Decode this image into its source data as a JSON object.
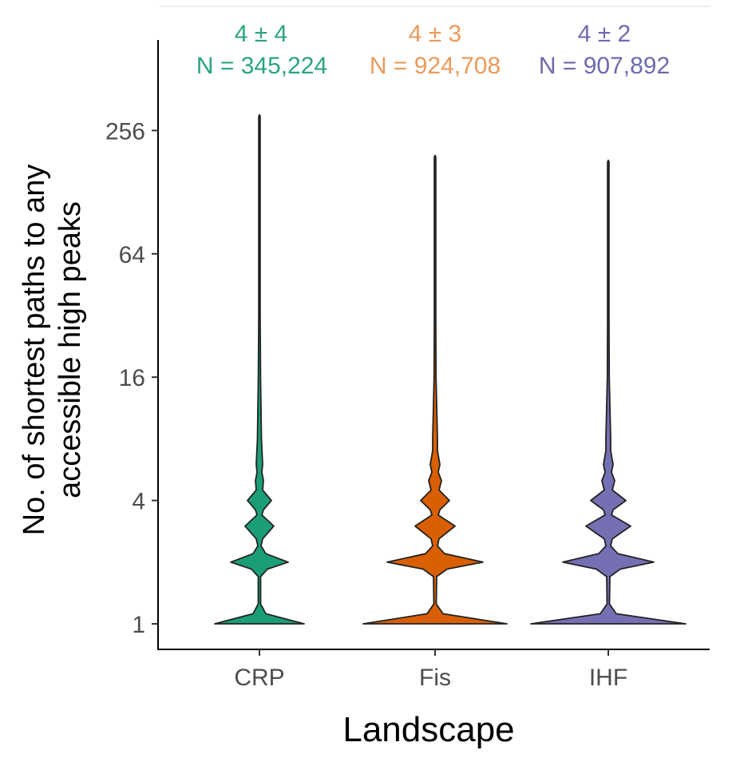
{
  "chart_data": {
    "type": "violin",
    "title": "",
    "xlabel": "Landscape",
    "ylabel": "No. of shortest paths to any accessible high peaks",
    "ylabel_lines": [
      "No. of shortest paths to any",
      "accessible high peaks"
    ],
    "yscale": "log2",
    "ylim": [
      0.8,
      512
    ],
    "yticks": [
      1,
      4,
      16,
      64,
      256
    ],
    "ytick_labels": [
      "1",
      "4",
      "16",
      "64",
      "256"
    ],
    "categories": [
      "CRP",
      "Fis",
      "IHF"
    ],
    "series": [
      {
        "name": "CRP",
        "color": "#1b9e77",
        "label_color": "#2aa57f",
        "stat": "4 ± 4",
        "n": "N = 345,224",
        "max": 300,
        "density": [
          [
            1,
            0.56
          ],
          [
            1.12,
            0.08
          ],
          [
            1.25,
            0.015
          ],
          [
            1.7,
            0.015
          ],
          [
            1.85,
            0.1
          ],
          [
            2,
            0.36
          ],
          [
            2.2,
            0.08
          ],
          [
            2.4,
            0.02
          ],
          [
            2.6,
            0.04
          ],
          [
            3,
            0.18
          ],
          [
            3.4,
            0.03
          ],
          [
            3.6,
            0.05
          ],
          [
            4,
            0.15
          ],
          [
            4.5,
            0.04
          ],
          [
            5,
            0.05
          ],
          [
            5.5,
            0.03
          ],
          [
            6,
            0.04
          ],
          [
            8,
            0.025
          ],
          [
            16,
            0.014
          ],
          [
            32,
            0.009
          ],
          [
            64,
            0.006
          ],
          [
            128,
            0.004
          ],
          [
            300,
            0.002
          ]
        ]
      },
      {
        "name": "Fis",
        "color": "#d95f02",
        "label_color": "#ec9a5a",
        "stat": "4 ± 3",
        "n": "N = 924,708",
        "max": 190,
        "density": [
          [
            1,
            0.9
          ],
          [
            1.12,
            0.1
          ],
          [
            1.25,
            0.015
          ],
          [
            1.7,
            0.02
          ],
          [
            1.85,
            0.15
          ],
          [
            2,
            0.6
          ],
          [
            2.2,
            0.12
          ],
          [
            2.4,
            0.03
          ],
          [
            2.6,
            0.05
          ],
          [
            3,
            0.25
          ],
          [
            3.4,
            0.04
          ],
          [
            3.6,
            0.06
          ],
          [
            4,
            0.18
          ],
          [
            4.5,
            0.05
          ],
          [
            5,
            0.08
          ],
          [
            5.5,
            0.04
          ],
          [
            6,
            0.06
          ],
          [
            7,
            0.03
          ],
          [
            8,
            0.03
          ],
          [
            16,
            0.012
          ],
          [
            32,
            0.008
          ],
          [
            64,
            0.005
          ],
          [
            190,
            0.002
          ]
        ]
      },
      {
        "name": "IHF",
        "color": "#7570b3",
        "label_color": "#6f6aae",
        "stat": "4 ± 2",
        "n": "N = 907,892",
        "max": 180,
        "density": [
          [
            1,
            0.97
          ],
          [
            1.12,
            0.1
          ],
          [
            1.25,
            0.015
          ],
          [
            1.7,
            0.02
          ],
          [
            1.85,
            0.15
          ],
          [
            2,
            0.57
          ],
          [
            2.2,
            0.12
          ],
          [
            2.4,
            0.03
          ],
          [
            2.6,
            0.05
          ],
          [
            3,
            0.28
          ],
          [
            3.4,
            0.04
          ],
          [
            3.6,
            0.06
          ],
          [
            4,
            0.22
          ],
          [
            4.5,
            0.05
          ],
          [
            5,
            0.08
          ],
          [
            5.5,
            0.04
          ],
          [
            6,
            0.06
          ],
          [
            7,
            0.03
          ],
          [
            8,
            0.03
          ],
          [
            16,
            0.012
          ],
          [
            32,
            0.008
          ],
          [
            64,
            0.005
          ],
          [
            180,
            0.002
          ]
        ]
      }
    ]
  }
}
